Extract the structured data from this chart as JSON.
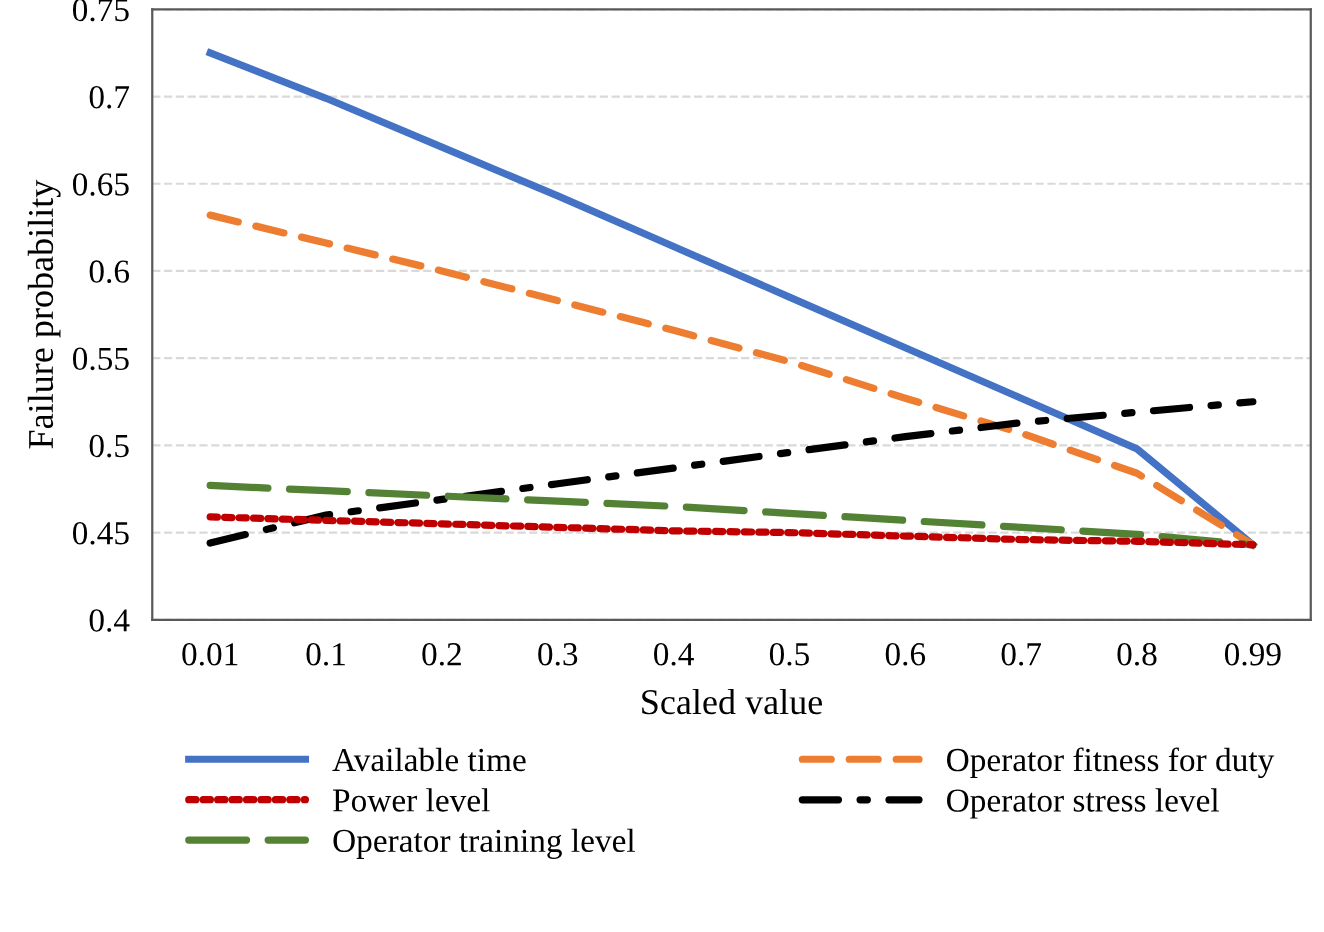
{
  "chart_data": {
    "type": "line",
    "xlabel": "Scaled value",
    "ylabel": "Failure probability",
    "categories": [
      "0.01",
      "0.1",
      "0.2",
      "0.3",
      "0.4",
      "0.5",
      "0.6",
      "0.7",
      "0.8",
      "0.99"
    ],
    "series": [
      {
        "name": "Available time",
        "color": "#4472c4",
        "line_style": "solid",
        "values": [
          0.725,
          0.699,
          0.671,
          0.643,
          0.614,
          0.585,
          0.556,
          0.527,
          0.498,
          0.443
        ]
      },
      {
        "name": "Operator fitness for duty",
        "color": "#ed7d31",
        "line_style": "dashed",
        "values": [
          0.632,
          0.616,
          0.6,
          0.583,
          0.566,
          0.548,
          0.527,
          0.507,
          0.484,
          0.443
        ]
      },
      {
        "name": "Power level",
        "color": "#c00000",
        "line_style": "dotted",
        "values": [
          0.459,
          0.457,
          0.455,
          0.453,
          0.451,
          0.45,
          0.448,
          0.446,
          0.445,
          0.443
        ]
      },
      {
        "name": "Operator stress level",
        "color": "#000000",
        "line_style": "dashdot",
        "values": [
          0.444,
          0.46,
          0.469,
          0.478,
          0.487,
          0.496,
          0.505,
          0.513,
          0.519,
          0.525
        ]
      },
      {
        "name": "Operator training level",
        "color": "#548235",
        "line_style": "longdash",
        "values": [
          0.477,
          0.474,
          0.471,
          0.468,
          0.465,
          0.461,
          0.457,
          0.453,
          0.449,
          0.443
        ]
      }
    ],
    "ylim": [
      0.4,
      0.75
    ],
    "yticks": [
      0.4,
      0.45,
      0.5,
      0.55,
      0.6,
      0.65,
      0.7,
      0.75
    ],
    "grid": "y",
    "legend": "bottom",
    "marker": "none"
  }
}
